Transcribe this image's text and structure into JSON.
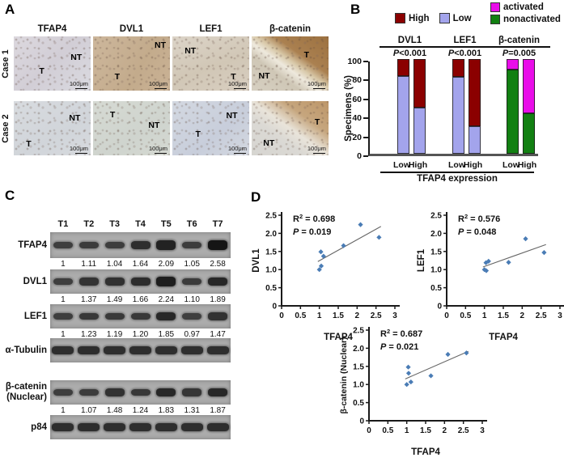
{
  "panel_a": {
    "label": "A",
    "col_headers": [
      "TFAP4",
      "DVL1",
      "LEF1",
      "β-catenin"
    ],
    "scale_label": "100μm",
    "rows": [
      {
        "label": "Case 1",
        "images": [
          {
            "marker": "TFAP4",
            "style": "c1-tfap4",
            "labels": [
              {
                "text": "T",
                "x": 33,
                "y": 55
              },
              {
                "text": "NT",
                "x": 74,
                "y": 30
              }
            ]
          },
          {
            "marker": "DVL1",
            "style": "c1-dvl1",
            "labels": [
              {
                "text": "NT",
                "x": 80,
                "y": 8
              },
              {
                "text": "T",
                "x": 28,
                "y": 66
              }
            ]
          },
          {
            "marker": "LEF1",
            "style": "c1-lef1",
            "labels": [
              {
                "text": "NT",
                "x": 16,
                "y": 18
              },
              {
                "text": "T",
                "x": 76,
                "y": 66
              }
            ]
          },
          {
            "marker": "β-catenin",
            "style": "c1-bcat",
            "labels": [
              {
                "text": "T",
                "x": 68,
                "y": 26
              },
              {
                "text": "NT",
                "x": 9,
                "y": 64
              }
            ]
          }
        ]
      },
      {
        "label": "Case 2",
        "images": [
          {
            "marker": "TFAP4",
            "style": "c2-tfap4",
            "labels": [
              {
                "text": "NT",
                "x": 72,
                "y": 22
              },
              {
                "text": "T",
                "x": 16,
                "y": 70
              }
            ]
          },
          {
            "marker": "DVL1",
            "style": "c2-dvl1",
            "labels": [
              {
                "text": "T",
                "x": 22,
                "y": 16
              },
              {
                "text": "NT",
                "x": 72,
                "y": 36
              }
            ]
          },
          {
            "marker": "LEF1",
            "style": "c2-lef1",
            "labels": [
              {
                "text": "NT",
                "x": 70,
                "y": 18
              },
              {
                "text": "T",
                "x": 30,
                "y": 52
              }
            ]
          },
          {
            "marker": "β-catenin",
            "style": "c2-bcat",
            "labels": [
              {
                "text": "T",
                "x": 82,
                "y": 30
              },
              {
                "text": "NT",
                "x": 15,
                "y": 68
              }
            ]
          }
        ]
      }
    ]
  },
  "panel_b": {
    "label": "B"
  },
  "panel_c": {
    "label": "C",
    "lanes": [
      "T1",
      "T2",
      "T3",
      "T4",
      "T5",
      "T6",
      "T7"
    ],
    "blots": [
      {
        "label_lines": [
          "TFAP4"
        ],
        "band_intensities": [
          1,
          1.11,
          1.04,
          1.64,
          2.09,
          1.05,
          2.58
        ],
        "value_labels": [
          "1",
          "1.11",
          "1.04",
          "1.64",
          "2.09",
          "1.05",
          "2.58"
        ]
      },
      {
        "label_lines": [
          "DVL1"
        ],
        "band_intensities": [
          1,
          1.37,
          1.49,
          1.66,
          2.24,
          1.1,
          1.89
        ],
        "value_labels": [
          "1",
          "1.37",
          "1.49",
          "1.66",
          "2.24",
          "1.10",
          "1.89"
        ]
      },
      {
        "label_lines": [
          "LEF1"
        ],
        "band_intensities": [
          1,
          1.23,
          1.19,
          1.2,
          1.85,
          0.97,
          1.47
        ],
        "value_labels": [
          "1",
          "1.23",
          "1.19",
          "1.20",
          "1.85",
          "0.97",
          "1.47"
        ]
      },
      {
        "label_lines": [
          "α-Tubulin"
        ],
        "band_intensities": [
          1.6,
          1.6,
          1.6,
          1.6,
          1.6,
          1.6,
          1.6
        ],
        "value_labels": null
      },
      {
        "label_lines": [
          "β-catenin",
          "(Nuclear)"
        ],
        "band_intensities": [
          1,
          1.07,
          1.48,
          1.24,
          1.83,
          1.31,
          1.87
        ],
        "value_labels": [
          "1",
          "1.07",
          "1.48",
          "1.24",
          "1.83",
          "1.31",
          "1.87"
        ]
      },
      {
        "label_lines": [
          "p84"
        ],
        "band_intensities": [
          1.6,
          1.6,
          1.6,
          1.6,
          1.6,
          1.6,
          1.6
        ],
        "value_labels": null
      }
    ]
  },
  "panel_d": {
    "label": "D",
    "r_label": "R",
    "p_label": "P",
    "equals": " = "
  },
  "chart_data": [
    {
      "id": "specimens-bar",
      "type": "bar",
      "stacked": true,
      "ylabel": "Specimens (%)",
      "ylim": [
        0,
        100
      ],
      "yticks": [
        0,
        20,
        40,
        60,
        80,
        100
      ],
      "xlabel": "TFAP4 expression",
      "legend_left": [
        {
          "label": "High",
          "color": "#8B0000"
        },
        {
          "label": "Low",
          "color": "#A3A4EC"
        }
      ],
      "legend_right": [
        {
          "label": "activated",
          "color": "#E90DE9"
        },
        {
          "label": "nonactivated",
          "color": "#128012"
        }
      ],
      "groups": [
        {
          "name": "DVL1",
          "p_value": "P<0.001",
          "bars": [
            {
              "x": "Low",
              "stack": [
                {
                  "label": "Low",
                  "value": 82
                },
                {
                  "label": "High",
                  "value": 18
                }
              ]
            },
            {
              "x": "High",
              "stack": [
                {
                  "label": "Low",
                  "value": 49
                },
                {
                  "label": "High",
                  "value": 51
                }
              ]
            }
          ]
        },
        {
          "name": "LEF1",
          "p_value": "P<0.001",
          "bars": [
            {
              "x": "Low",
              "stack": [
                {
                  "label": "Low",
                  "value": 81
                },
                {
                  "label": "High",
                  "value": 19
                }
              ]
            },
            {
              "x": "High",
              "stack": [
                {
                  "label": "Low",
                  "value": 29
                },
                {
                  "label": "High",
                  "value": 71
                }
              ]
            }
          ]
        },
        {
          "name": "β-catenin",
          "p_value": "P=0.005",
          "bars": [
            {
              "x": "Low",
              "stack": [
                {
                  "label": "nonactivated",
                  "value": 89
                },
                {
                  "label": "activated",
                  "value": 11
                }
              ]
            },
            {
              "x": "High",
              "stack": [
                {
                  "label": "nonactivated",
                  "value": 43
                },
                {
                  "label": "activated",
                  "value": 57
                }
              ]
            }
          ]
        }
      ]
    },
    {
      "id": "scatter-dvl1",
      "type": "scatter",
      "xlabel": "TFAP4",
      "ylabel": "DVL1",
      "xlim": [
        0,
        3
      ],
      "ylim": [
        0,
        2.5
      ],
      "xticks": [
        "0",
        "0.5",
        "1",
        "1.5",
        "2",
        "2.5",
        "3"
      ],
      "yticks": [
        "0",
        "0.5",
        "1.0",
        "1.5",
        "2.0",
        "2.5"
      ],
      "r2": "0.698",
      "p": "0.019",
      "x": [
        1,
        1.11,
        1.04,
        1.64,
        2.09,
        1.05,
        2.58
      ],
      "y": [
        1,
        1.37,
        1.49,
        1.66,
        2.24,
        1.1,
        1.89
      ],
      "trendline": true,
      "point_color": "#4A7CB5",
      "trend_color": "#666666"
    },
    {
      "id": "scatter-lef1",
      "type": "scatter",
      "xlabel": "TFAP4",
      "ylabel": "LEF1",
      "xlim": [
        0,
        3
      ],
      "ylim": [
        0,
        2.5
      ],
      "xticks": [
        "0",
        "0.5",
        "1",
        "1.5",
        "2",
        "2.5",
        "3"
      ],
      "yticks": [
        "0",
        "0.5",
        "1.0",
        "1.5",
        "2.0",
        "2.5"
      ],
      "r2": "0.576",
      "p": "0.048",
      "x": [
        1,
        1.11,
        1.04,
        1.64,
        2.09,
        1.05,
        2.58
      ],
      "y": [
        1,
        1.23,
        1.19,
        1.2,
        1.85,
        0.97,
        1.47
      ],
      "trendline": true,
      "point_color": "#4A7CB5",
      "trend_color": "#666666"
    },
    {
      "id": "scatter-bcatenin",
      "type": "scatter",
      "xlabel": "TFAP4",
      "ylabel": "β-catenin (Nuclear)",
      "xlim": [
        0,
        3
      ],
      "ylim": [
        0,
        2.5
      ],
      "xticks": [
        "0",
        "0.5",
        "1",
        "1.5",
        "2",
        "2.5",
        "3"
      ],
      "yticks": [
        "0",
        "0.5",
        "1.0",
        "1.5",
        "2.0",
        "2.5"
      ],
      "r2": "0.687",
      "p": "0.021",
      "x": [
        1,
        1.11,
        1.04,
        1.64,
        2.09,
        1.05,
        2.58
      ],
      "y": [
        1,
        1.07,
        1.48,
        1.24,
        1.83,
        1.31,
        1.87
      ],
      "trendline": true,
      "point_color": "#4A7CB5",
      "trend_color": "#666666"
    }
  ]
}
